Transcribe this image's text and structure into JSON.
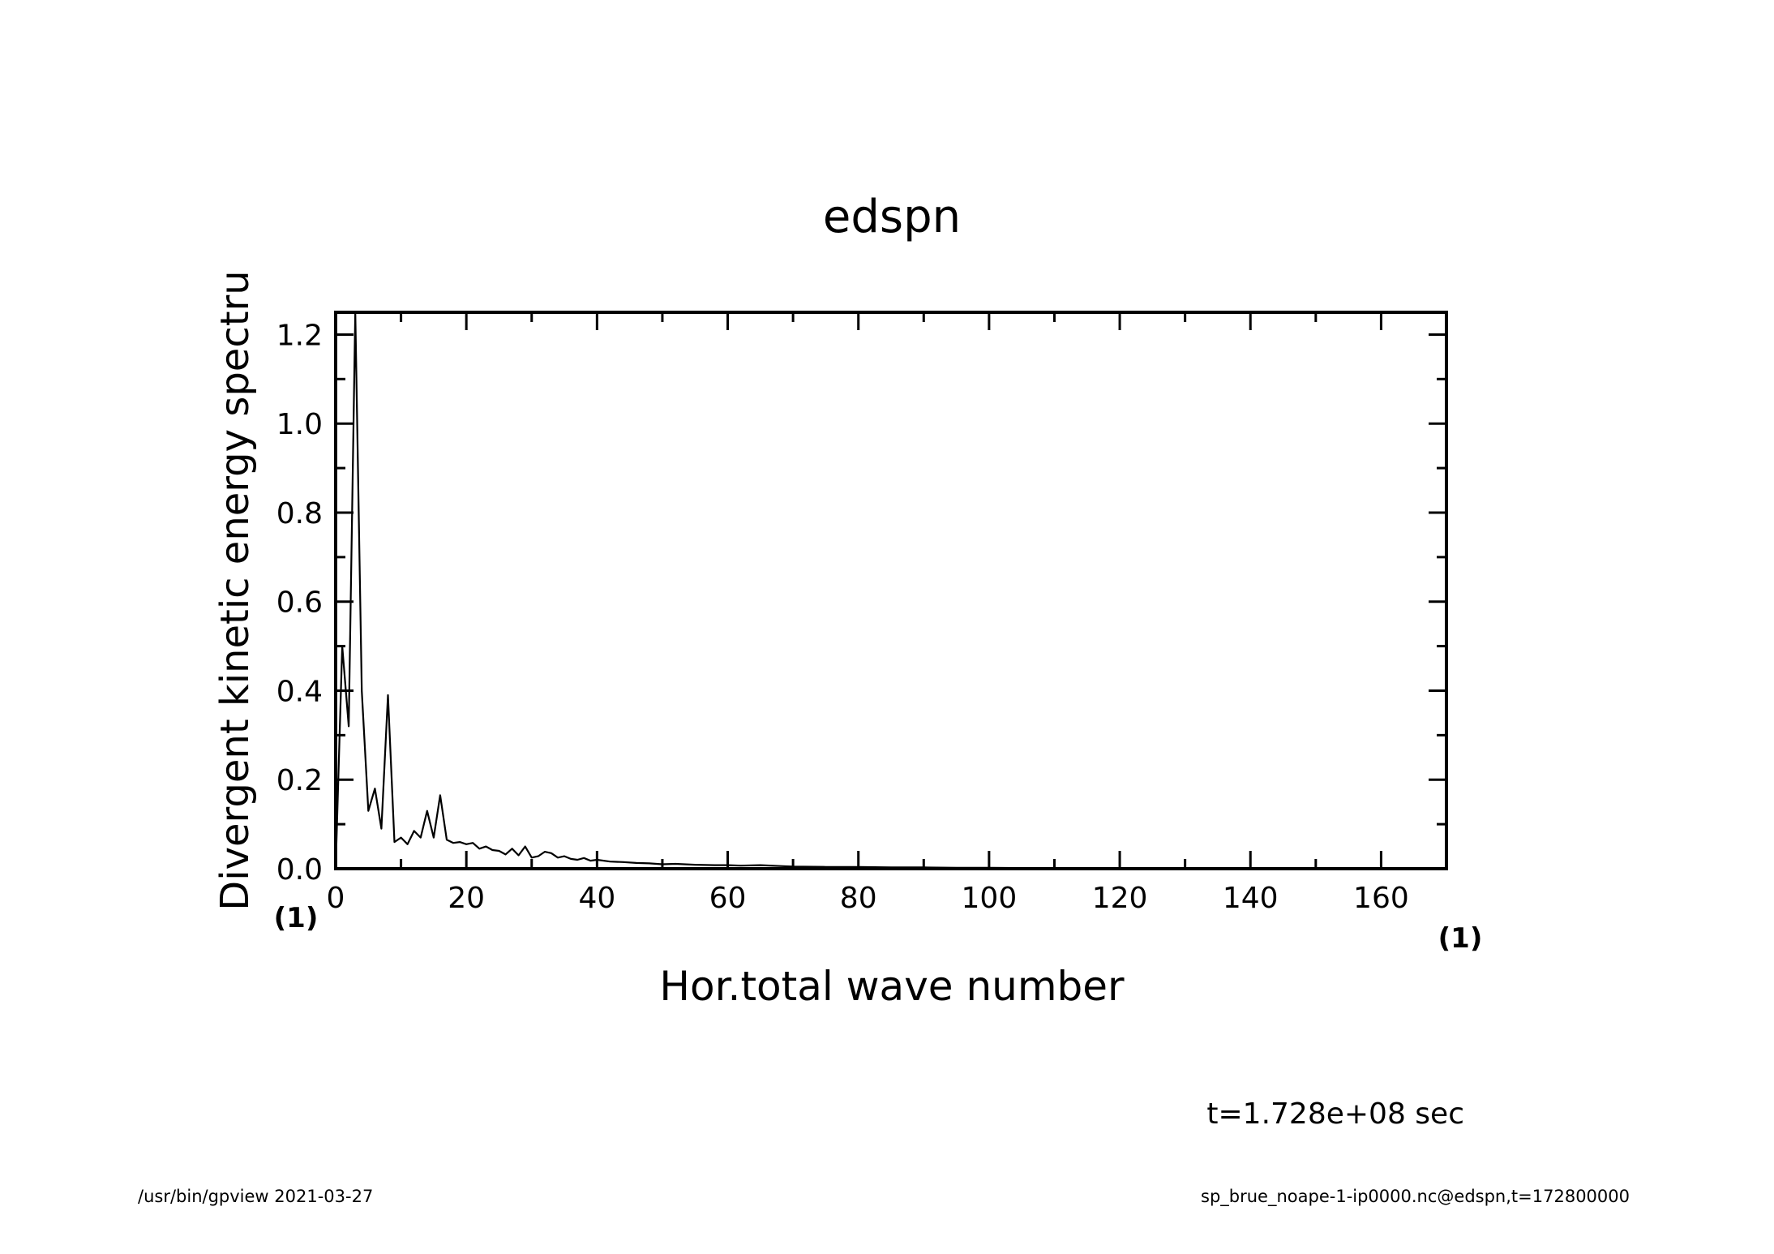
{
  "chart_data": {
    "type": "line",
    "title": "edspn",
    "xlabel": "Hor.total wave number",
    "ylabel": "Divergent kinetic energy spectru",
    "x_unit": "(1)",
    "y_unit": "(1)",
    "xlim": [
      0,
      170
    ],
    "ylim": [
      0,
      1.25
    ],
    "x_major_ticks": [
      0,
      20,
      40,
      60,
      80,
      100,
      120,
      140,
      160
    ],
    "x_tick_labels": [
      "0",
      "20",
      "40",
      "60",
      "80",
      "100",
      "120",
      "140",
      "160"
    ],
    "y_major_ticks": [
      0.0,
      0.2,
      0.4,
      0.6,
      0.8,
      1.0,
      1.2
    ],
    "y_tick_labels": [
      "0.0",
      "0.2",
      "0.4",
      "0.6",
      "0.8",
      "1.0",
      "1.2"
    ],
    "grid": false,
    "series": [
      {
        "x": [
          0,
          1,
          2,
          3,
          4,
          5,
          6,
          7,
          8,
          9,
          10,
          11,
          12,
          13,
          14,
          15,
          16,
          17,
          18,
          19,
          20,
          21,
          22,
          23,
          24,
          25,
          26,
          27,
          28,
          29,
          30,
          31,
          32,
          33,
          34,
          35,
          36,
          37,
          38,
          39,
          40,
          42,
          44,
          46,
          48,
          50,
          52,
          55,
          58,
          60,
          62,
          65,
          68,
          70,
          75,
          80,
          85,
          90,
          95,
          100,
          110,
          120,
          130,
          140,
          150,
          160,
          170
        ],
        "y": [
          0.0,
          0.5,
          0.32,
          1.25,
          0.4,
          0.13,
          0.18,
          0.09,
          0.39,
          0.06,
          0.07,
          0.055,
          0.085,
          0.07,
          0.13,
          0.07,
          0.165,
          0.065,
          0.058,
          0.06,
          0.055,
          0.058,
          0.045,
          0.05,
          0.042,
          0.04,
          0.032,
          0.045,
          0.03,
          0.05,
          0.025,
          0.028,
          0.038,
          0.035,
          0.025,
          0.028,
          0.022,
          0.02,
          0.024,
          0.018,
          0.02,
          0.016,
          0.015,
          0.013,
          0.012,
          0.01,
          0.011,
          0.009,
          0.008,
          0.008,
          0.007,
          0.008,
          0.006,
          0.005,
          0.004,
          0.004,
          0.003,
          0.003,
          0.002,
          0.002,
          0.001,
          0.001,
          0.001,
          0.0005,
          0.0005,
          0.0003,
          0.0002
        ]
      }
    ]
  },
  "annotations": {
    "time": "t=1.728e+08 sec",
    "program": "/usr/bin/gpview   2021-03-27",
    "source": "sp_brue_noape-1-ip0000.nc@edspn,t=172800000"
  }
}
